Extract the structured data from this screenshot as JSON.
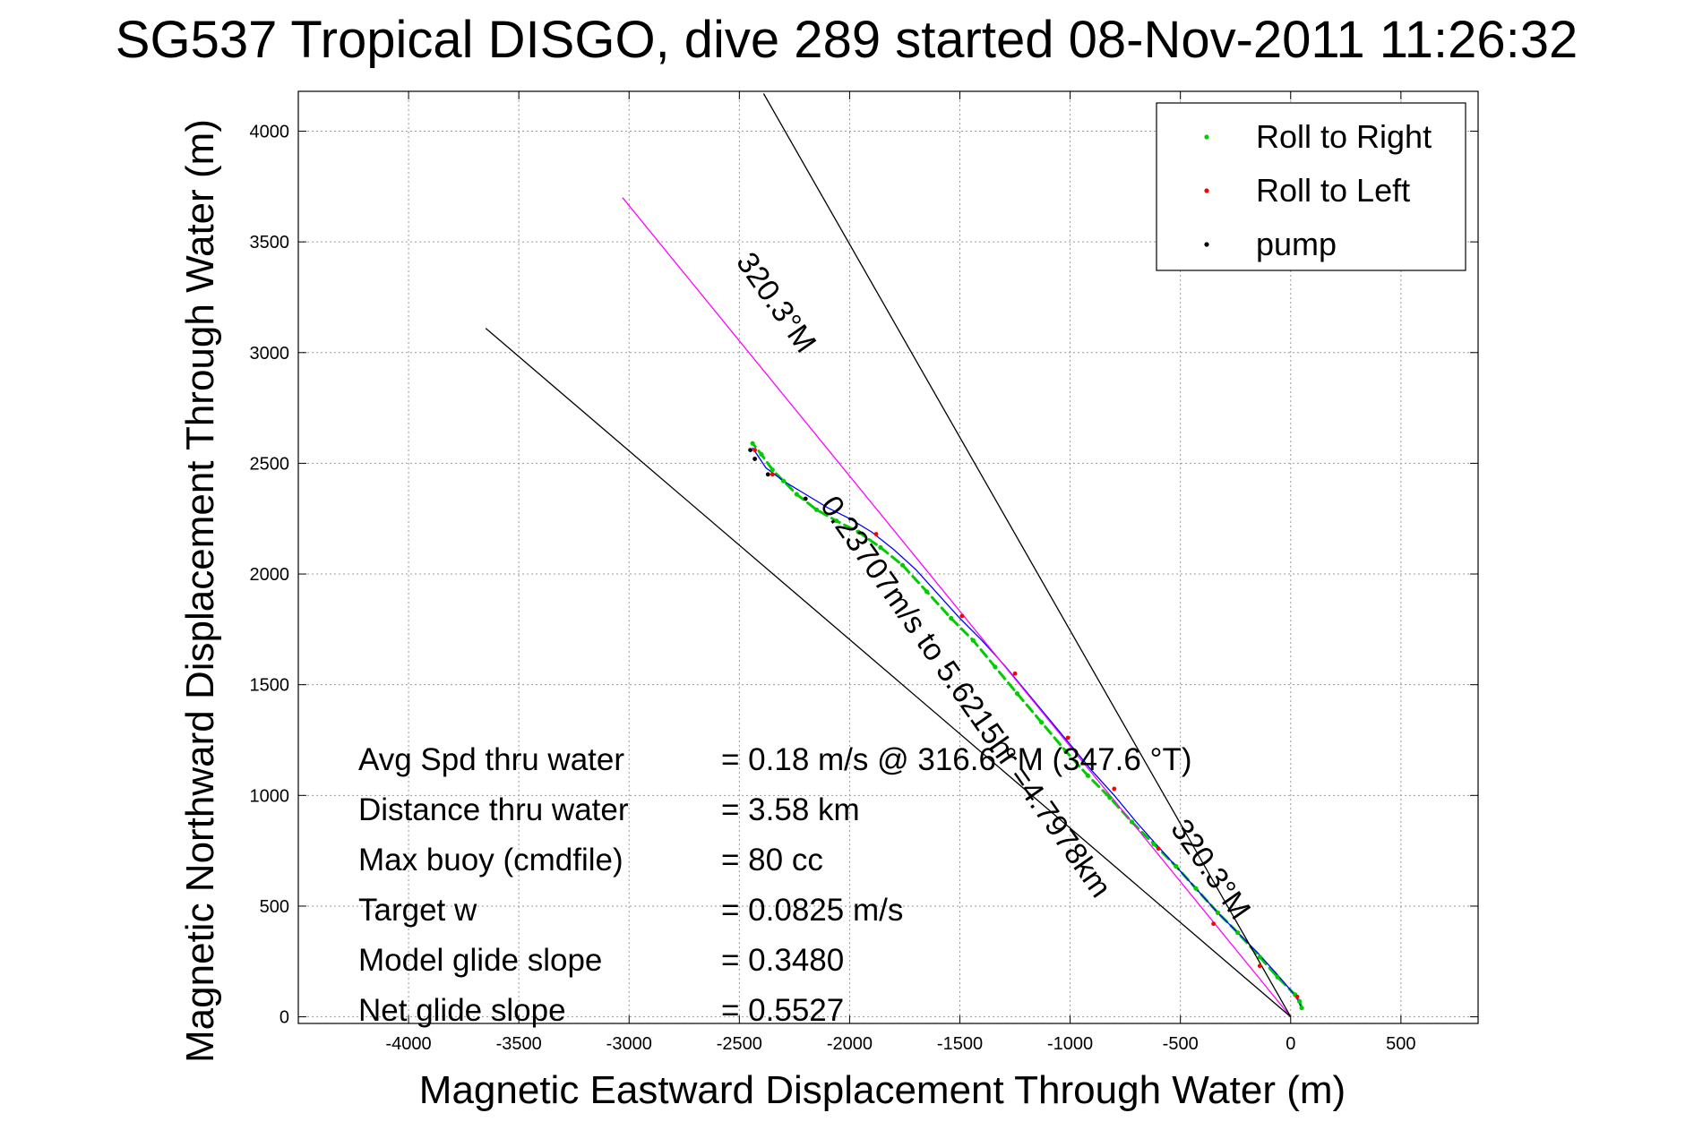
{
  "chart_data": {
    "type": "line",
    "title": "SG537 Tropical DISGO, dive 289 started 08-Nov-2011 11:26:32",
    "xlabel": "Magnetic Eastward Displacement Through Water (m)",
    "ylabel": "Magnetic Northward Displacement Through Water (m)",
    "xlim": [
      -4500,
      850
    ],
    "ylim": [
      -30,
      4180
    ],
    "xticks": [
      -4000,
      -3500,
      -3000,
      -2500,
      -2000,
      -1500,
      -1000,
      -500,
      0,
      500
    ],
    "yticks": [
      0,
      500,
      1000,
      1500,
      2000,
      2500,
      3000,
      3500,
      4000
    ],
    "xtick_labels": [
      "-4000",
      "-3500",
      "-3000",
      "-2500",
      "-2000",
      "-1500",
      "-1000",
      "-500",
      "0",
      "500"
    ],
    "ytick_labels": [
      "0",
      "500",
      "1000",
      "1500",
      "2000",
      "2500",
      "3000",
      "3500",
      "4000"
    ],
    "grid": true,
    "legend": {
      "position": "top-right",
      "entries": [
        {
          "label": "Roll to Right",
          "color": "#00cc00"
        },
        {
          "label": "Roll to Left",
          "color": "#ff0000"
        },
        {
          "label": "pump",
          "color": "#000000"
        }
      ]
    },
    "series": [
      {
        "name": "Roll to Right",
        "color": "#00cc00",
        "marker": "dot",
        "x": [
          50,
          40,
          20,
          -60,
          -140,
          -240,
          -330,
          -430,
          -520,
          -620,
          -720,
          -820,
          -920,
          -1020,
          -1130,
          -1240,
          -1340,
          -1440,
          -1540,
          -1650,
          -1760,
          -1860,
          -1960,
          -2060,
          -2150,
          -2240,
          -2300,
          -2350,
          -2400,
          -2440
        ],
        "y": [
          40,
          70,
          100,
          180,
          270,
          380,
          470,
          580,
          680,
          780,
          880,
          990,
          1090,
          1200,
          1330,
          1460,
          1580,
          1700,
          1800,
          1920,
          2040,
          2120,
          2190,
          2240,
          2290,
          2360,
          2420,
          2470,
          2540,
          2590
        ]
      },
      {
        "name": "Roll to Left",
        "color": "#ff0000",
        "marker": "dot",
        "x": [
          30,
          -140,
          -350,
          -600,
          -800,
          -1010,
          -1250,
          -1490,
          -1880,
          -2350,
          -2430
        ],
        "y": [
          90,
          230,
          420,
          760,
          1030,
          1260,
          1550,
          1810,
          2180,
          2450,
          2560
        ]
      },
      {
        "name": "pump",
        "color": "#000000",
        "marker": "dot",
        "x": [
          -2200,
          -2370,
          -2430,
          -2450
        ],
        "y": [
          2340,
          2450,
          2520,
          2560
        ]
      },
      {
        "color": "#0000ff",
        "style": "solid",
        "x": [
          50,
          30,
          0,
          -60,
          -150,
          -240,
          -330,
          -430,
          -520,
          -620,
          -700,
          -800,
          -900,
          -1000,
          -1100,
          -1200,
          -1300,
          -1400,
          -1500,
          -1600,
          -1700,
          -1800,
          -1900,
          -2000,
          -2100,
          -2200,
          -2300,
          -2380,
          -2440
        ],
        "y": [
          40,
          80,
          120,
          190,
          290,
          380,
          470,
          580,
          680,
          790,
          880,
          1000,
          1110,
          1230,
          1350,
          1470,
          1590,
          1700,
          1800,
          1910,
          2020,
          2110,
          2190,
          2250,
          2300,
          2360,
          2420,
          2480,
          2570
        ]
      },
      {
        "color": "#ff00ff",
        "style": "solid",
        "x": [
          0,
          -3030
        ],
        "y": [
          0,
          3700
        ]
      },
      {
        "color": "#000000",
        "style": "solid",
        "x": [
          0,
          -2390
        ],
        "y": [
          0,
          4170
        ]
      },
      {
        "color": "#000000",
        "style": "solid",
        "x": [
          0,
          -3650
        ],
        "y": [
          0,
          3110
        ]
      }
    ],
    "annotations": [
      {
        "text": "0.23707m/s to 5.6215hr =4.7978km",
        "x": -1510,
        "y": 1420,
        "rotation_deg": 55
      },
      {
        "text": "320.3°M",
        "x": -2370,
        "y": 3200,
        "rotation_deg": 55
      },
      {
        "text": "320.3°M",
        "x": -400,
        "y": 640,
        "rotation_deg": 55
      }
    ],
    "stats": [
      {
        "label": "Avg Spd thru water",
        "value": "=  0.18 m/s @ 316.6 °M (347.6 °T)"
      },
      {
        "label": "Distance thru water",
        "value": "=  3.58 km"
      },
      {
        "label": "Max buoy (cmdfile)",
        "value": "= 80 cc"
      },
      {
        "label": "Target w",
        "value": "= 0.0825 m/s"
      },
      {
        "label": "Model glide slope",
        "value": "= 0.3480"
      },
      {
        "label": "Net glide slope",
        "value": "= 0.5527"
      }
    ]
  }
}
